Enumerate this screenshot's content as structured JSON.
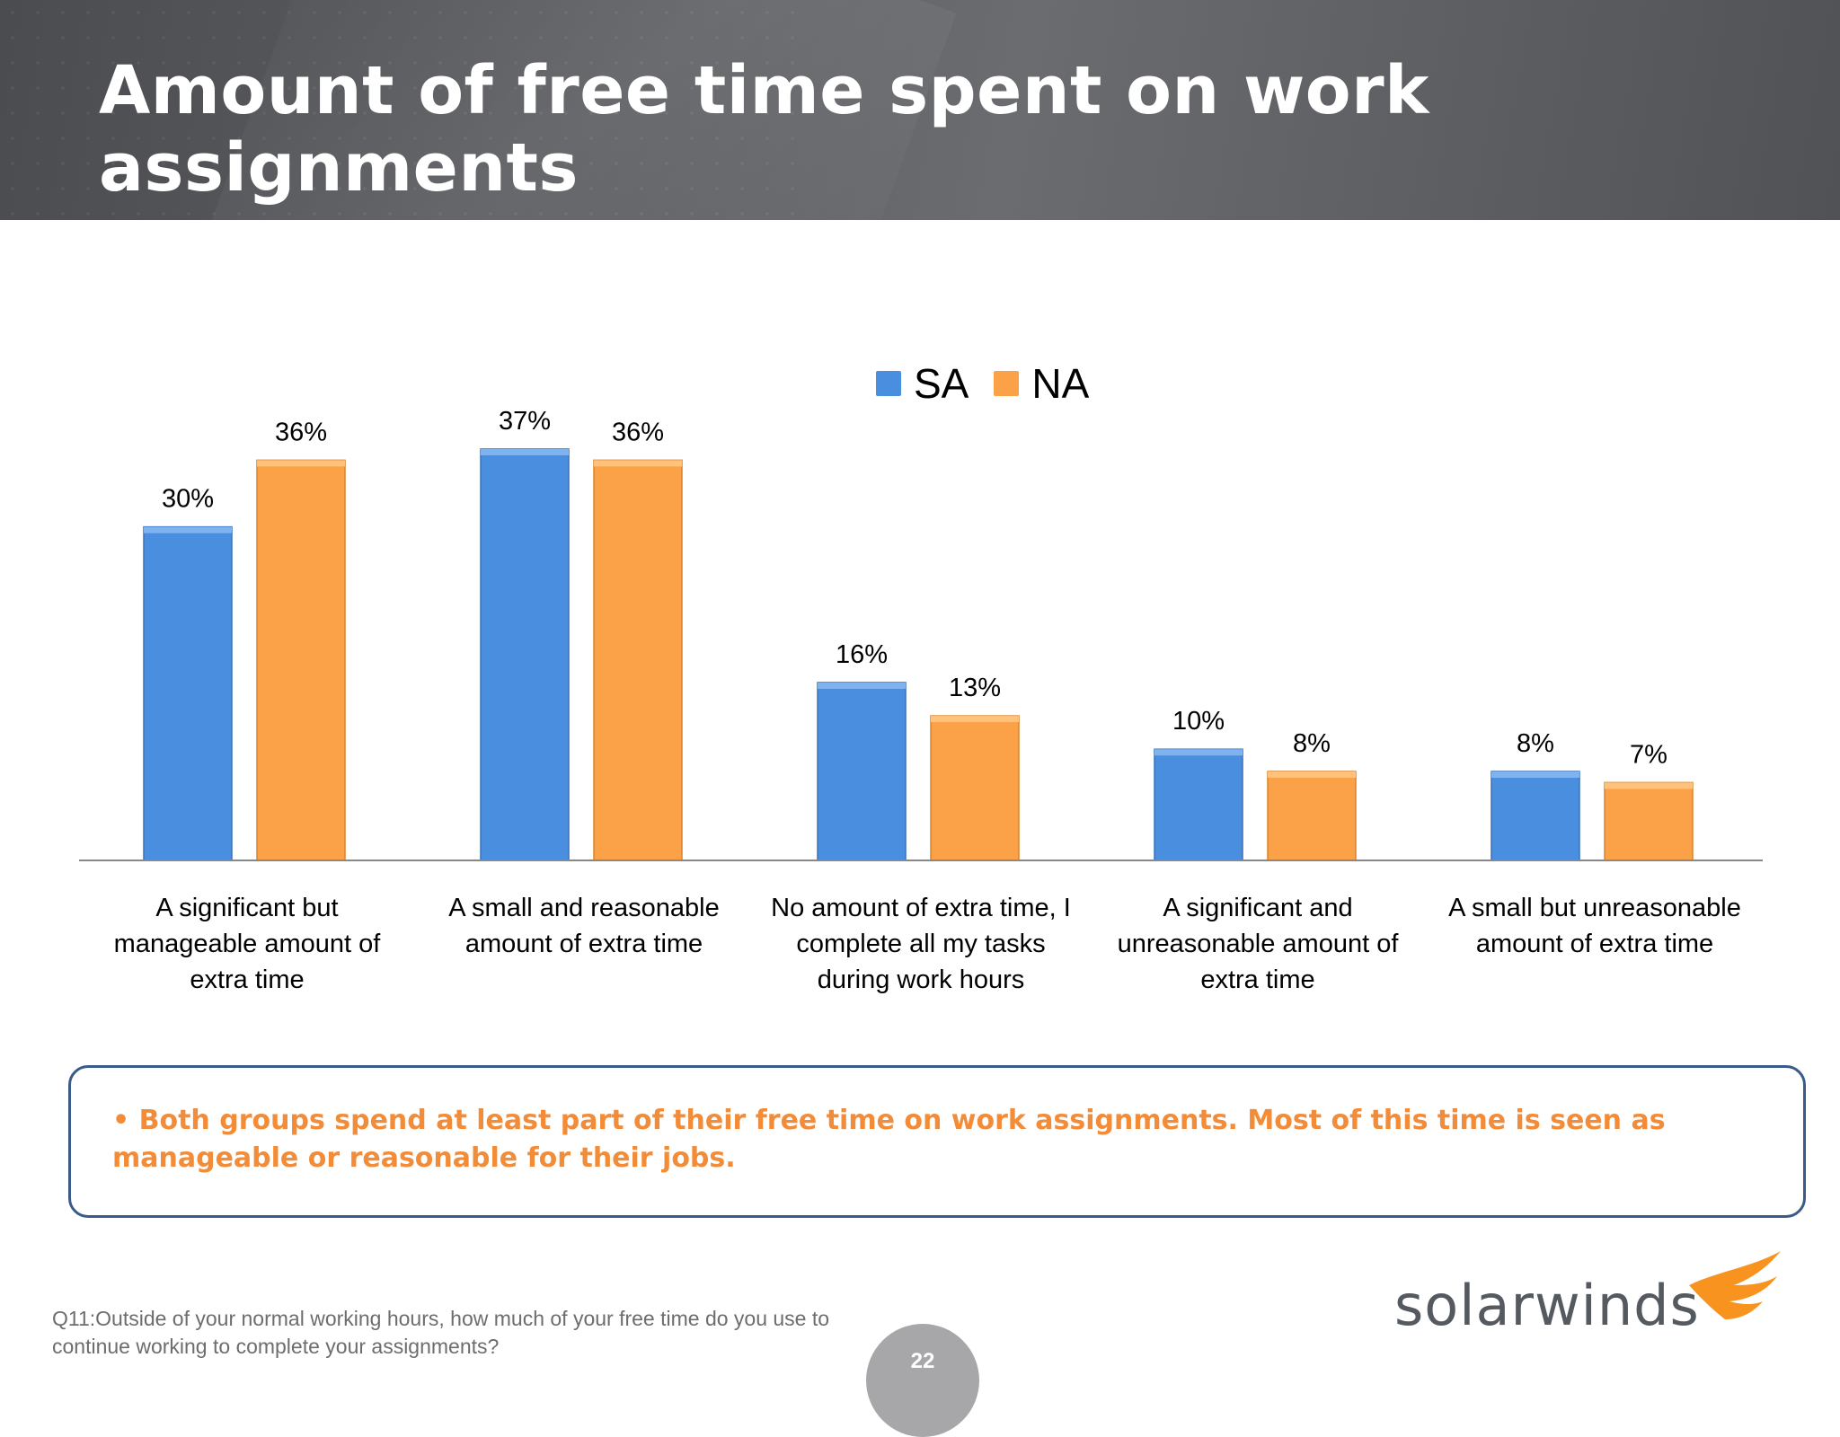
{
  "title": "Amount of free time spent on work assignments",
  "chart_data": {
    "type": "bar",
    "categories": [
      [
        "A significant but",
        "manageable amount of",
        "extra time"
      ],
      [
        "A small and reasonable",
        "amount of extra time"
      ],
      [
        "No amount of extra time, I",
        "complete all my tasks",
        "during work hours"
      ],
      [
        "A significant and",
        "unreasonable amount of",
        "extra time"
      ],
      [
        "A small but unreasonable",
        "amount of extra time"
      ]
    ],
    "series": [
      {
        "name": "SA",
        "color": "#4a8ee0",
        "values": [
          30,
          37,
          16,
          10,
          8
        ],
        "labels": [
          "30%",
          "37%",
          "16%",
          "10%",
          "8%"
        ]
      },
      {
        "name": "NA",
        "color": "#fba249",
        "values": [
          36,
          36,
          13,
          8,
          7
        ],
        "labels": [
          "36%",
          "36%",
          "13%",
          "8%",
          "7%"
        ]
      }
    ],
    "ylim": [
      0,
      37
    ],
    "legend_position": "top-center",
    "grid": false
  },
  "note": "• Both groups spend at least part of their free time on work assignments.  Most of this time is seen as manageable or reasonable for their jobs.",
  "footnote": "Q11:Outside of your normal working hours, how much of your free time do you use to continue working to complete your assignments?",
  "page_number": "22",
  "logo": {
    "text": "solarwinds",
    "color": "#f7931e"
  }
}
